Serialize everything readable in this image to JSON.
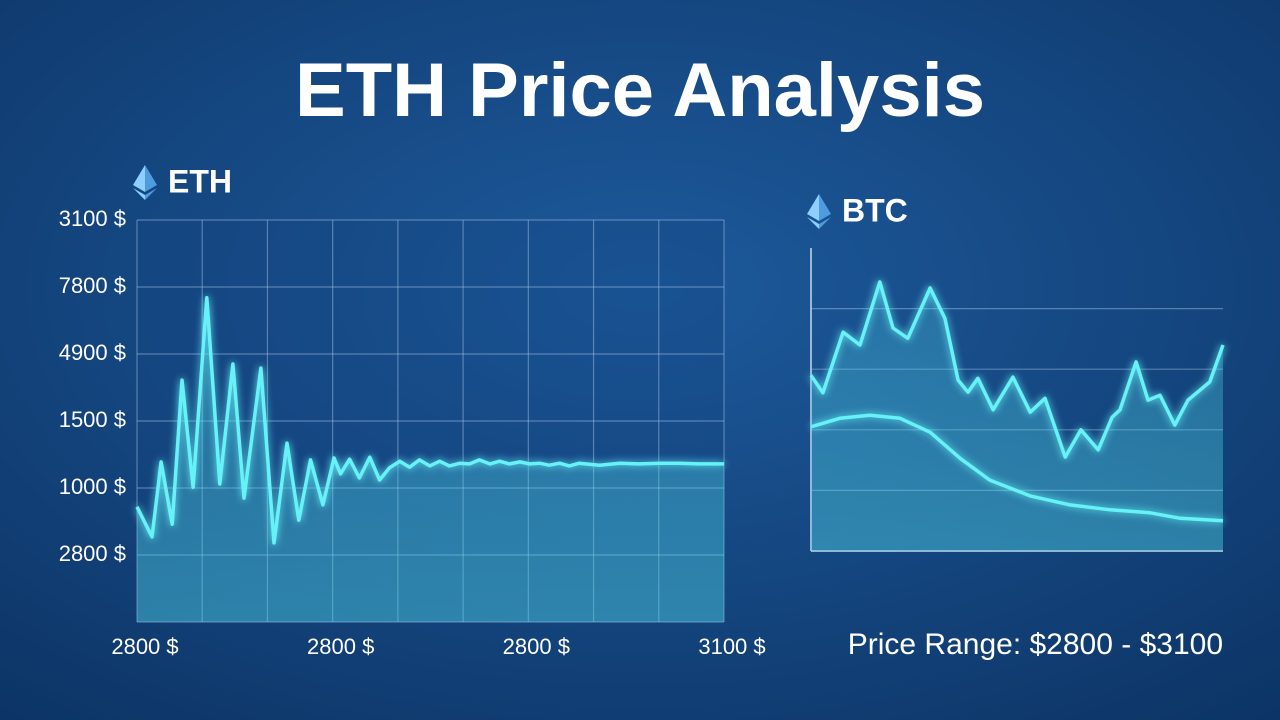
{
  "title": "ETH Price Analysis",
  "footer": "Price Range: $2800 - $3100",
  "chart_data": [
    {
      "type": "line",
      "title": "ETH",
      "y_labels": [
        "3100 $",
        "7800 $",
        "4900 $",
        "1500 $",
        "1000 $",
        "2800 $"
      ],
      "x_labels": [
        "2800 $",
        "2800 $",
        "2800 $",
        "3100 $"
      ],
      "xlim": [
        0,
        9
      ],
      "xticks": [
        0,
        1,
        2,
        3,
        4,
        5,
        6,
        7,
        8,
        9
      ],
      "ylim": [
        0,
        6
      ],
      "yticks": [
        0,
        1,
        2,
        3,
        4,
        5,
        6
      ],
      "grid": true,
      "series": [
        {
          "color": "#66f2f7",
          "x": [
            0,
            0.23,
            0.37,
            0.54,
            0.69,
            0.86,
            1.07,
            1.27,
            1.47,
            1.64,
            1.9,
            2.1,
            2.3,
            2.48,
            2.66,
            2.85,
            3.02,
            3.12,
            3.26,
            3.41,
            3.57,
            3.72,
            3.87,
            4.03,
            4.18,
            4.33,
            4.49,
            4.64,
            4.79,
            4.95,
            5.1,
            5.25,
            5.41,
            5.56,
            5.71,
            5.87,
            6.02,
            6.17,
            6.32,
            6.48,
            6.63,
            6.78,
            7.09,
            7.4,
            7.7,
            8.01,
            8.32,
            8.62,
            9
          ],
          "values": [
            1.72,
            1.27,
            2.39,
            1.46,
            3.61,
            2.01,
            4.84,
            2.06,
            3.85,
            1.85,
            3.79,
            1.18,
            2.67,
            1.52,
            2.42,
            1.75,
            2.45,
            2.21,
            2.43,
            2.15,
            2.46,
            2.12,
            2.3,
            2.4,
            2.31,
            2.42,
            2.33,
            2.4,
            2.33,
            2.37,
            2.36,
            2.42,
            2.36,
            2.4,
            2.36,
            2.39,
            2.36,
            2.37,
            2.34,
            2.37,
            2.33,
            2.37,
            2.34,
            2.37,
            2.36,
            2.37,
            2.37,
            2.36,
            2.36
          ]
        }
      ]
    },
    {
      "type": "line",
      "title": "BTC",
      "xlim": [
        0,
        10
      ],
      "ylim": [
        0,
        5
      ],
      "yticks": [
        1,
        2,
        3,
        4
      ],
      "grid": true,
      "series": [
        {
          "color": "#66f2f7",
          "x": [
            0,
            0.29,
            0.78,
            1.19,
            1.67,
            1.99,
            2.35,
            2.89,
            3.25,
            3.57,
            3.81,
            4.05,
            4.42,
            4.9,
            5.32,
            5.68,
            6.17,
            6.55,
            6.97,
            7.31,
            7.5,
            7.89,
            8.18,
            8.47,
            8.83,
            9.15,
            9.68,
            10
          ],
          "values": [
            2.9,
            2.61,
            3.61,
            3.4,
            4.44,
            3.68,
            3.51,
            4.34,
            3.84,
            2.82,
            2.62,
            2.85,
            2.33,
            2.87,
            2.29,
            2.52,
            1.55,
            2.0,
            1.67,
            2.21,
            2.33,
            3.12,
            2.49,
            2.57,
            2.08,
            2.49,
            2.79,
            3.4
          ]
        },
        {
          "color": "#66f2f7",
          "x": [
            0,
            0.7,
            1.43,
            2.16,
            2.89,
            3.62,
            4.34,
            5.32,
            6.29,
            7.26,
            8.23,
            8.96,
            10
          ],
          "values": [
            2.05,
            2.19,
            2.24,
            2.19,
            1.96,
            1.53,
            1.17,
            0.91,
            0.76,
            0.68,
            0.63,
            0.54,
            0.5
          ]
        }
      ]
    }
  ]
}
